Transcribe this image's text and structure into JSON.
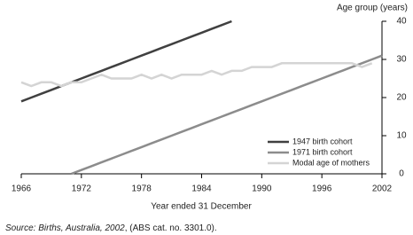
{
  "chart_data": {
    "type": "line",
    "y_label": "Age group (years)",
    "x_label": "Year ended 31 December",
    "source": [
      "Source: Births, Australia, 2002",
      ", (ABS cat. no. 3301.0)."
    ],
    "x": [
      1966,
      1967,
      1968,
      1969,
      1970,
      1971,
      1972,
      1973,
      1974,
      1975,
      1976,
      1977,
      1978,
      1979,
      1980,
      1981,
      1982,
      1983,
      1984,
      1985,
      1986,
      1987,
      1988,
      1989,
      1990,
      1991,
      1992,
      1993,
      1994,
      1995,
      1996,
      1997,
      1998,
      1999,
      2000,
      2001,
      2002
    ],
    "series": [
      {
        "name": "1947 birth cohort",
        "color": "#404040",
        "values": [
          19,
          20,
          21,
          22,
          23,
          24,
          25,
          26,
          27,
          28,
          29,
          30,
          31,
          32,
          33,
          34,
          35,
          36,
          37,
          38,
          39,
          40,
          null,
          null,
          null,
          null,
          null,
          null,
          null,
          null,
          null,
          null,
          null,
          null,
          null,
          null,
          null
        ]
      },
      {
        "name": "1971 birth cohort",
        "color": "#8c8c8c",
        "values": [
          null,
          null,
          null,
          null,
          null,
          0,
          1,
          2,
          3,
          4,
          5,
          6,
          7,
          8,
          9,
          10,
          11,
          12,
          13,
          14,
          15,
          16,
          17,
          18,
          19,
          20,
          21,
          22,
          23,
          24,
          25,
          26,
          27,
          28,
          29,
          30,
          31
        ]
      },
      {
        "name": "Modal age of mothers",
        "color": "#d4d4d4",
        "values": [
          24,
          23,
          24,
          24,
          23,
          24,
          24,
          25,
          26,
          25,
          25,
          25,
          26,
          25,
          26,
          25,
          26,
          26,
          26,
          27,
          26,
          27,
          27,
          28,
          28,
          28,
          29,
          29,
          29,
          29,
          29,
          29,
          29,
          29,
          28,
          29,
          null
        ]
      }
    ],
    "xlim": [
      1966,
      2002
    ],
    "xticks": [
      1966,
      1972,
      1978,
      1984,
      1990,
      1996,
      2002
    ],
    "ylim": [
      0,
      40
    ],
    "yticks": [
      0,
      10,
      20,
      30,
      40
    ],
    "grid": false,
    "legend": "lower right"
  }
}
